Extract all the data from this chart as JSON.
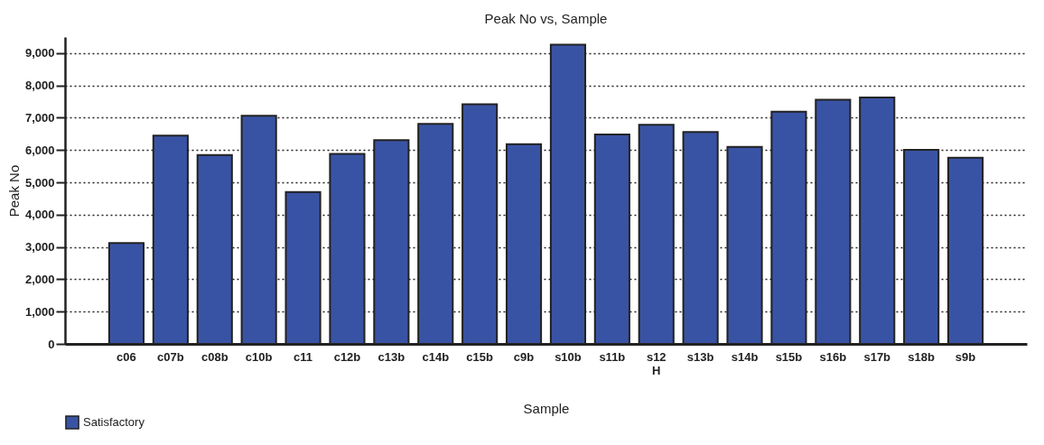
{
  "chart_data": {
    "type": "bar",
    "title": "Peak No vs, Sample",
    "xlabel": "Sample",
    "ylabel": "Peak No",
    "categories": [
      "c06",
      "c07b",
      "c08b",
      "c10b",
      "c11",
      "c12b",
      "c13b",
      "c14b",
      "c15b",
      "c9b",
      "s10b",
      "s11b",
      "s12 H",
      "s13b",
      "s14b",
      "s15b",
      "s16b",
      "s17b",
      "s18b",
      "s9b"
    ],
    "series": [
      {
        "name": "Satisfactory",
        "color": "#3953a4",
        "values": [
          3120,
          6450,
          5850,
          7060,
          4700,
          5880,
          6310,
          6810,
          7420,
          6180,
          9260,
          6480,
          6780,
          6560,
          6100,
          7190,
          7560,
          7630,
          6010,
          5760
        ]
      }
    ],
    "ylim": [
      0,
      9500
    ],
    "yticks": [
      {
        "value": 0,
        "label": "0"
      },
      {
        "value": 1000,
        "label": "1,000"
      },
      {
        "value": 2000,
        "label": "2,000"
      },
      {
        "value": 3000,
        "label": "3,000"
      },
      {
        "value": 4000,
        "label": "4,000"
      },
      {
        "value": 5000,
        "label": "5,000"
      },
      {
        "value": 6000,
        "label": "6,000"
      },
      {
        "value": 7000,
        "label": "7,000"
      },
      {
        "value": 8000,
        "label": "8,000"
      },
      {
        "value": 9000,
        "label": "9,000"
      }
    ],
    "grid": "y",
    "legend": "bottom"
  }
}
